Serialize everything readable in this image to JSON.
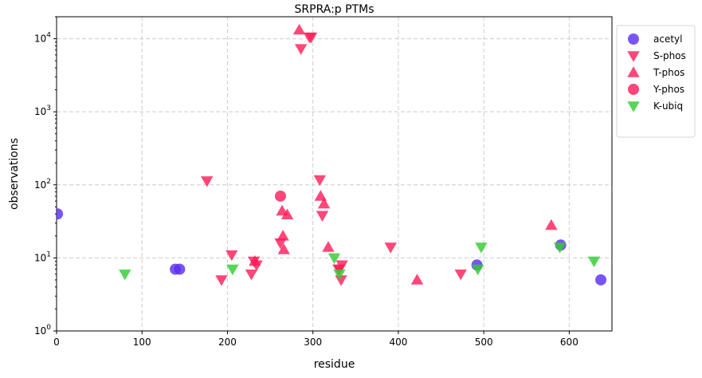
{
  "chart_data": {
    "type": "scatter",
    "title": "SRPRA:p PTMs",
    "xlabel": "residue",
    "ylabel": "observations",
    "xlim": [
      0,
      650
    ],
    "ylim": [
      1,
      20000
    ],
    "yscale": "log",
    "grid": true,
    "legend_position": "outside-top-right",
    "x_ticks": [
      0,
      100,
      200,
      300,
      400,
      500,
      600
    ],
    "y_ticks": [
      {
        "value": 1,
        "base": "10",
        "exp": "0"
      },
      {
        "value": 10,
        "base": "10",
        "exp": "1"
      },
      {
        "value": 100,
        "base": "10",
        "exp": "2"
      },
      {
        "value": 1000,
        "base": "10",
        "exp": "3"
      },
      {
        "value": 10000,
        "base": "10",
        "exp": "4"
      }
    ],
    "series": [
      {
        "name": "acetyl",
        "marker": "circle",
        "color": "#5a2ff0",
        "points": [
          [
            1,
            40
          ],
          [
            139,
            7
          ],
          [
            144,
            7
          ],
          [
            492,
            8
          ],
          [
            590,
            15
          ],
          [
            637,
            5
          ]
        ]
      },
      {
        "name": "S-phos",
        "marker": "triangle-down",
        "color": "#ff1f5b",
        "points": [
          [
            176,
            113
          ],
          [
            193,
            5
          ],
          [
            205,
            11
          ],
          [
            228,
            6
          ],
          [
            231,
            9
          ],
          [
            234,
            8
          ],
          [
            262,
            16
          ],
          [
            286,
            7300
          ],
          [
            296,
            10500
          ],
          [
            298,
            10500
          ],
          [
            308,
            117
          ],
          [
            311,
            38
          ],
          [
            330,
            7
          ],
          [
            331,
            7
          ],
          [
            333,
            5
          ],
          [
            334,
            8
          ],
          [
            391,
            14
          ],
          [
            473,
            6
          ]
        ]
      },
      {
        "name": "T-phos",
        "marker": "triangle-up",
        "color": "#ff1f5b",
        "points": [
          [
            232,
            9
          ],
          [
            264,
            44
          ],
          [
            265,
            20
          ],
          [
            266,
            13
          ],
          [
            270,
            39
          ],
          [
            284,
            13200
          ],
          [
            309,
            70
          ],
          [
            313,
            55
          ],
          [
            318,
            14
          ],
          [
            422,
            5
          ],
          [
            579,
            28
          ]
        ]
      },
      {
        "name": "Y-phos",
        "marker": "circle",
        "color": "#ff1f5b",
        "points": [
          [
            262,
            70
          ]
        ]
      },
      {
        "name": "K-ubiq",
        "marker": "triangle-down",
        "color": "#33cc33",
        "points": [
          [
            80,
            6
          ],
          [
            206,
            7
          ],
          [
            325,
            10
          ],
          [
            331,
            6
          ],
          [
            493,
            7
          ],
          [
            497,
            14
          ],
          [
            589,
            14
          ],
          [
            629,
            9
          ]
        ]
      }
    ]
  }
}
